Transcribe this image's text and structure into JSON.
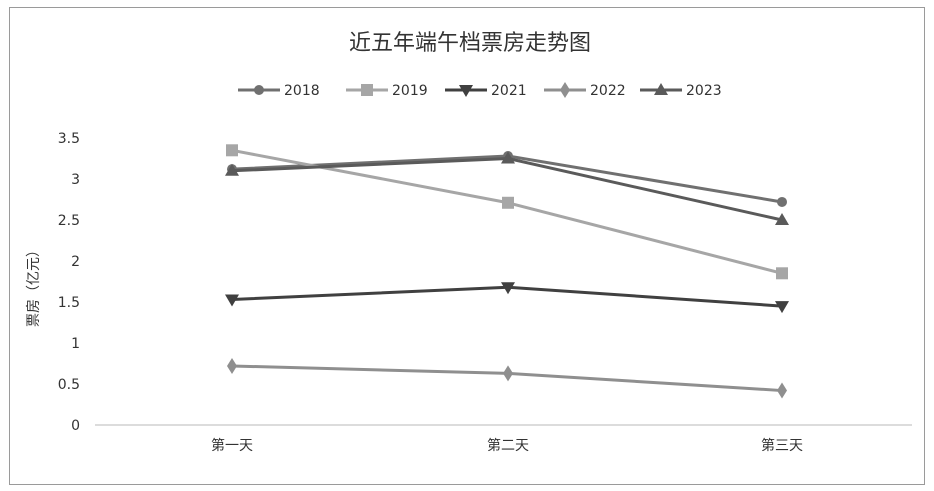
{
  "chart_data": {
    "type": "line",
    "title": "近五年端午档票房走势图",
    "ylabel": "票房（亿元）",
    "xlabel": "",
    "categories": [
      "第一天",
      "第二天",
      "第三天"
    ],
    "ylim": [
      0,
      3.5
    ],
    "yticks": [
      "0",
      "0.5",
      "1",
      "1.5",
      "2",
      "2.5",
      "3",
      "3.5"
    ],
    "grid": false,
    "legend": "top",
    "series": [
      {
        "name": "2018",
        "values": [
          3.12,
          3.28,
          2.72
        ],
        "color": "#707070",
        "marker": "circle"
      },
      {
        "name": "2019",
        "values": [
          3.35,
          2.71,
          1.85
        ],
        "color": "#a6a6a6",
        "marker": "square"
      },
      {
        "name": "2021",
        "values": [
          1.53,
          1.68,
          1.45
        ],
        "color": "#404040",
        "marker": "triangle-down"
      },
      {
        "name": "2022",
        "values": [
          0.72,
          0.63,
          0.42
        ],
        "color": "#8f8f8f",
        "marker": "diamond"
      },
      {
        "name": "2023",
        "values": [
          3.1,
          3.25,
          2.5
        ],
        "color": "#5a5a5a",
        "marker": "triangle-up"
      }
    ]
  }
}
